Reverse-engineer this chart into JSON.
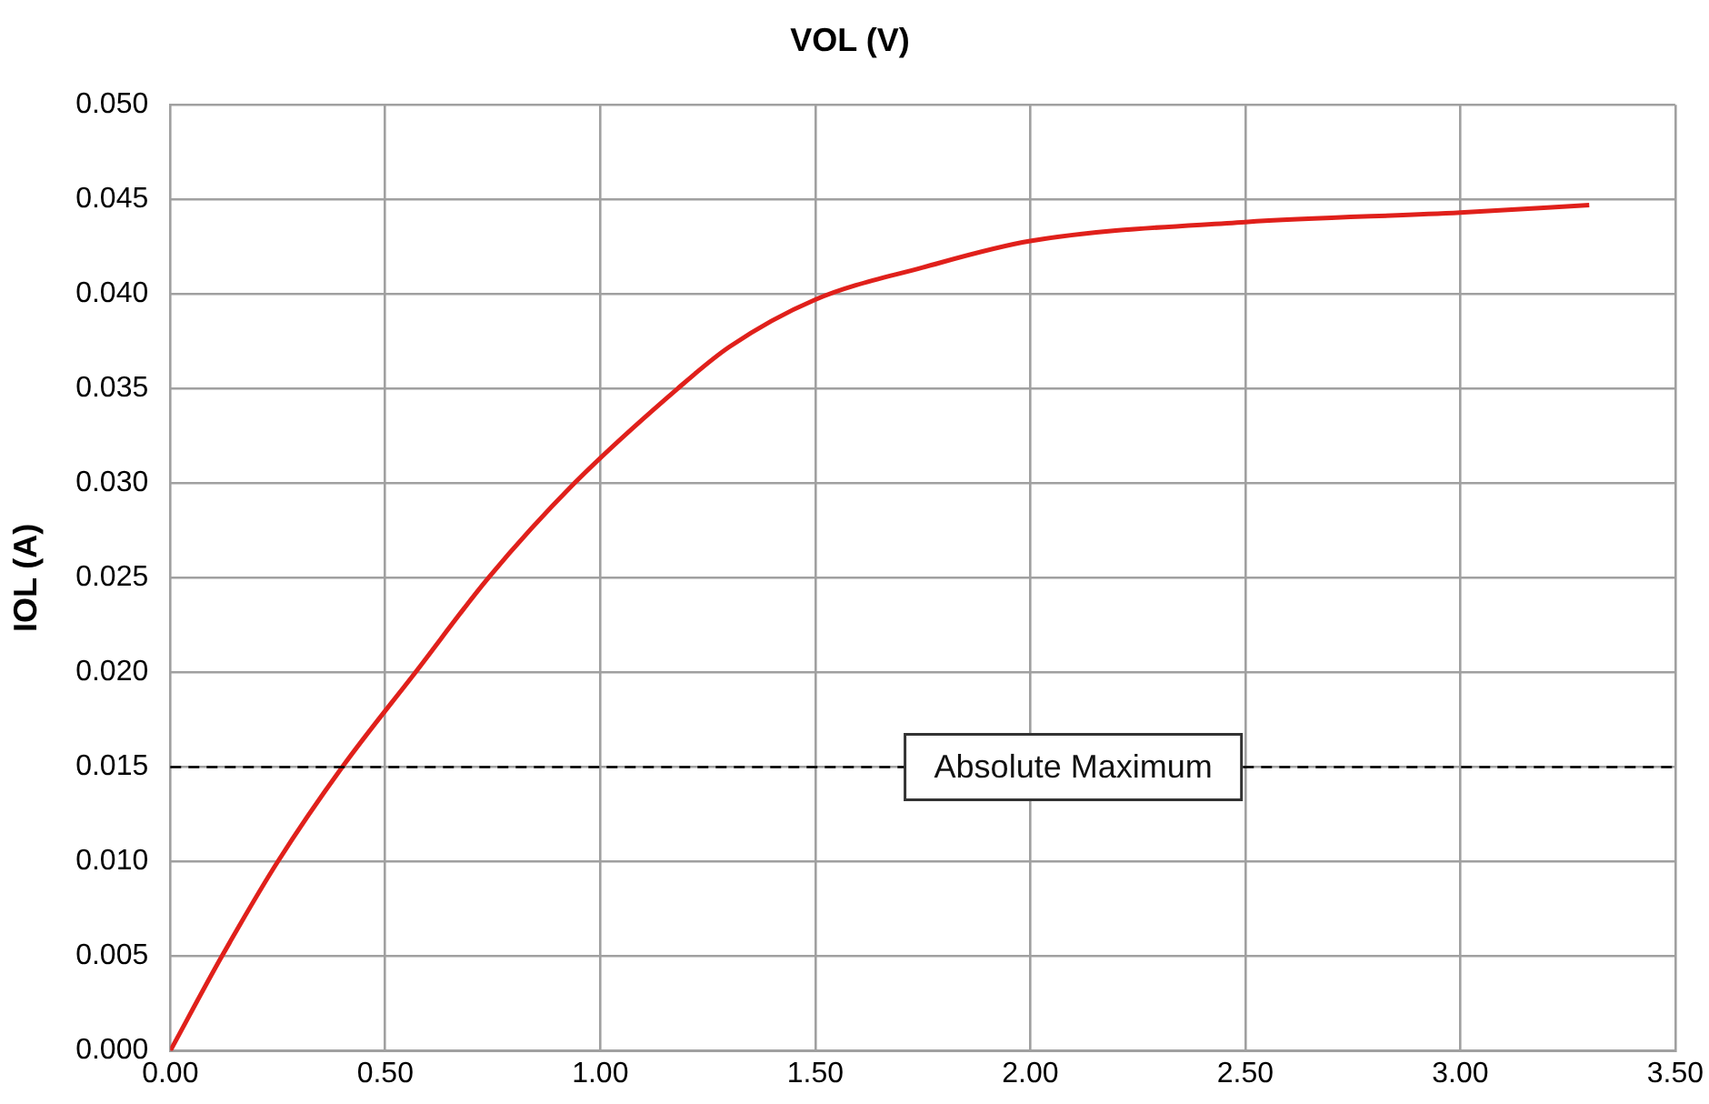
{
  "chart_data": {
    "type": "line",
    "title": "VOL (V)",
    "ylabel": "IOL (A)",
    "x": [
      0,
      0.12,
      0.25,
      0.4,
      0.57,
      0.74,
      0.94,
      1.18,
      1.3,
      1.5,
      1.75,
      2.0,
      2.5,
      3.0,
      3.3
    ],
    "series": [
      {
        "color": "#e0201b",
        "values": [
          0,
          0.005,
          0.01,
          0.015,
          0.02,
          0.025,
          0.03,
          0.035,
          0.0372,
          0.0397,
          0.0414,
          0.0428,
          0.0438,
          0.0443,
          0.0447
        ]
      }
    ],
    "xlim": [
      0,
      3.5
    ],
    "xticks": [
      {
        "value": 0,
        "label": "0.00"
      },
      {
        "value": 0.5,
        "label": "0.50"
      },
      {
        "value": 1,
        "label": "1.00"
      },
      {
        "value": 1.5,
        "label": "1.50"
      },
      {
        "value": 2,
        "label": "2.00"
      },
      {
        "value": 2.5,
        "label": "2.50"
      },
      {
        "value": 3,
        "label": "3.00"
      },
      {
        "value": 3.5,
        "label": "3.50"
      }
    ],
    "ylim": [
      0,
      0.05
    ],
    "yticks": [
      {
        "value": 0,
        "label": "0.000"
      },
      {
        "value": 0.005,
        "label": "0.005"
      },
      {
        "value": 0.01,
        "label": "0.010"
      },
      {
        "value": 0.015,
        "label": "0.015"
      },
      {
        "value": 0.02,
        "label": "0.020"
      },
      {
        "value": 0.025,
        "label": "0.025"
      },
      {
        "value": 0.03,
        "label": "0.030"
      },
      {
        "value": 0.035,
        "label": "0.035"
      },
      {
        "value": 0.04,
        "label": "0.040"
      },
      {
        "value": 0.045,
        "label": "0.045"
      },
      {
        "value": 0.05,
        "label": "0.050"
      }
    ],
    "ref_lines": [
      {
        "axis": "y",
        "value": 0.015,
        "label": "Absolute Maximum",
        "line_style": "dashed",
        "color": "#000000"
      }
    ],
    "grid": true,
    "legend": false,
    "marker": "none",
    "line_style": "solid"
  }
}
